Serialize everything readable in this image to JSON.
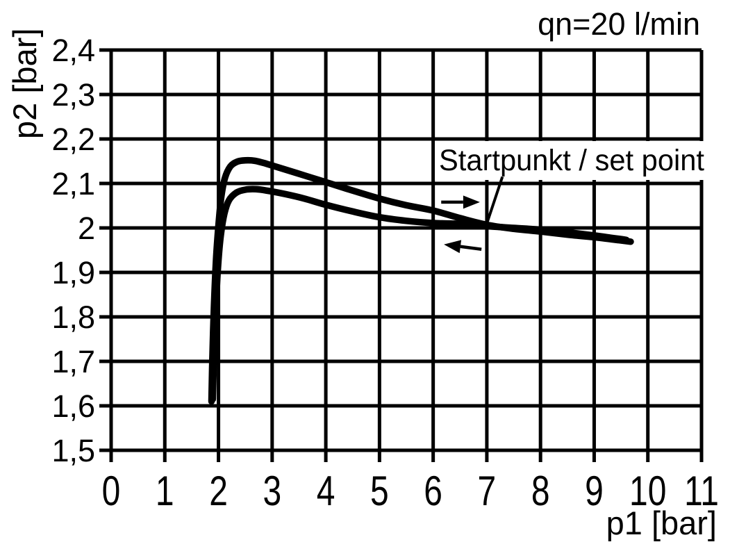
{
  "figure": {
    "background_color": "#ffffff",
    "ink_color": "#000000"
  },
  "chart_data": {
    "type": "line",
    "title": "",
    "flow_annotation": "qn=20 l/min",
    "xlabel": "p1 [bar]",
    "ylabel": "p2 [bar]",
    "xlim": [
      0,
      11
    ],
    "ylim": [
      1.5,
      2.4
    ],
    "grid": true,
    "x_ticks": [
      0,
      1,
      2,
      3,
      4,
      5,
      6,
      7,
      8,
      9,
      10,
      11
    ],
    "x_tick_labels": [
      "0",
      "1",
      "2",
      "3",
      "4",
      "5",
      "6",
      "7",
      "8",
      "9",
      "10",
      "11"
    ],
    "y_ticks": [
      2.4,
      2.3,
      2.2,
      2.1,
      2.0,
      1.9,
      1.8,
      1.7,
      1.6,
      1.5
    ],
    "y_tick_labels": [
      "2,4",
      "2,3",
      "2,2",
      "2,1",
      "2",
      "1,9",
      "1,8",
      "1,7",
      "1,6",
      "1,5"
    ],
    "series": [
      {
        "name": "upper-branch-p1-increasing",
        "points": [
          [
            1.87,
            1.61
          ],
          [
            1.885,
            1.7
          ],
          [
            1.915,
            1.82
          ],
          [
            1.955,
            1.93
          ],
          [
            2.0,
            2.005
          ],
          [
            2.05,
            2.068
          ],
          [
            2.12,
            2.112
          ],
          [
            2.22,
            2.138
          ],
          [
            2.35,
            2.149
          ],
          [
            2.5,
            2.152
          ],
          [
            2.68,
            2.151
          ],
          [
            2.9,
            2.144
          ],
          [
            3.2,
            2.133
          ],
          [
            3.6,
            2.118
          ],
          [
            4.0,
            2.103
          ],
          [
            4.5,
            2.084
          ],
          [
            5.0,
            2.066
          ],
          [
            5.5,
            2.051
          ],
          [
            6.0,
            2.039
          ],
          [
            6.5,
            2.022
          ],
          [
            7.0,
            2.007
          ],
          [
            7.5,
            1.998
          ],
          [
            8.0,
            1.992
          ],
          [
            8.5,
            1.985
          ],
          [
            9.0,
            1.979
          ],
          [
            9.35,
            1.974
          ],
          [
            9.68,
            1.969
          ]
        ]
      },
      {
        "name": "lower-branch-p1-decreasing",
        "points": [
          [
            1.895,
            1.615
          ],
          [
            1.915,
            1.71
          ],
          [
            1.95,
            1.82
          ],
          [
            1.995,
            1.92
          ],
          [
            2.045,
            1.985
          ],
          [
            2.11,
            2.032
          ],
          [
            2.195,
            2.062
          ],
          [
            2.33,
            2.079
          ],
          [
            2.5,
            2.086
          ],
          [
            2.7,
            2.087
          ],
          [
            2.95,
            2.083
          ],
          [
            3.25,
            2.076
          ],
          [
            3.6,
            2.066
          ],
          [
            4.0,
            2.052
          ],
          [
            4.5,
            2.037
          ],
          [
            5.0,
            2.024
          ],
          [
            5.5,
            2.016
          ],
          [
            6.0,
            2.011
          ],
          [
            6.5,
            2.009
          ],
          [
            7.0,
            2.004
          ],
          [
            7.5,
            2.0
          ],
          [
            8.0,
            1.996
          ],
          [
            8.5,
            1.99
          ],
          [
            9.0,
            1.983
          ],
          [
            9.3,
            1.978
          ],
          [
            9.6,
            1.973
          ]
        ]
      }
    ],
    "annotations": {
      "set_point": {
        "label": "Startpunkt / set point",
        "leader_from": [
          7.29,
          2.115
        ],
        "leader_to": [
          7.0,
          2.01
        ]
      },
      "direction_arrows": [
        {
          "name": "forward-direction-arrow",
          "direction": "right",
          "from": [
            6.15,
            2.058
          ],
          "to": [
            6.87,
            2.058
          ]
        },
        {
          "name": "return-direction-arrow",
          "direction": "left",
          "from": [
            6.9,
            1.952
          ],
          "to": [
            6.2,
            1.963
          ]
        }
      ]
    }
  }
}
